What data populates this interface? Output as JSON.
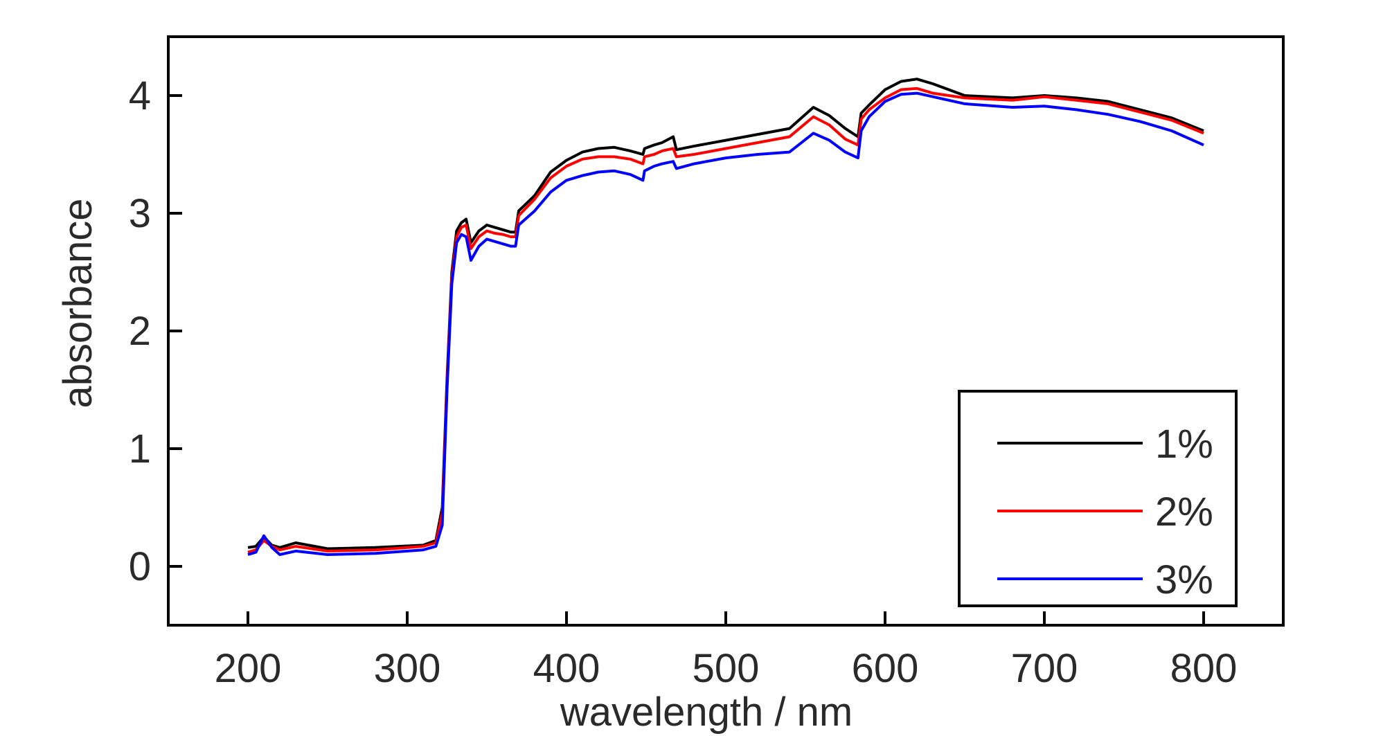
{
  "chart_data": {
    "type": "line",
    "title": "",
    "xlabel": "wavelength / nm",
    "ylabel": "absorbance",
    "xlim": [
      150,
      850
    ],
    "ylim": [
      -0.5,
      4.5
    ],
    "xticks": [
      200,
      300,
      400,
      500,
      600,
      700,
      800
    ],
    "yticks": [
      0,
      1,
      2,
      3,
      4
    ],
    "grid": false,
    "legend_position": "bottom-right",
    "x": [
      200,
      205,
      210,
      215,
      220,
      230,
      250,
      280,
      310,
      318,
      322,
      325,
      328,
      331,
      334,
      337,
      340,
      345,
      350,
      355,
      360,
      365,
      368,
      370,
      380,
      390,
      400,
      410,
      420,
      430,
      440,
      448,
      449,
      455,
      460,
      467,
      469,
      480,
      500,
      520,
      540,
      555,
      565,
      575,
      583,
      585,
      590,
      600,
      610,
      620,
      630,
      650,
      680,
      700,
      720,
      740,
      760,
      780,
      800
    ],
    "series": [
      {
        "name": "1%",
        "color": "#000000",
        "values": [
          0.16,
          0.17,
          0.25,
          0.18,
          0.16,
          0.2,
          0.15,
          0.16,
          0.18,
          0.22,
          0.5,
          1.6,
          2.5,
          2.85,
          2.92,
          2.95,
          2.75,
          2.85,
          2.9,
          2.88,
          2.86,
          2.84,
          2.84,
          3.02,
          3.15,
          3.35,
          3.45,
          3.52,
          3.55,
          3.56,
          3.53,
          3.5,
          3.55,
          3.58,
          3.6,
          3.65,
          3.54,
          3.57,
          3.62,
          3.67,
          3.72,
          3.9,
          3.83,
          3.72,
          3.65,
          3.85,
          3.92,
          4.05,
          4.12,
          4.14,
          4.1,
          4.0,
          3.98,
          4.0,
          3.98,
          3.95,
          3.88,
          3.81,
          3.7
        ]
      },
      {
        "name": "2%",
        "color": "#ff0000",
        "values": [
          0.12,
          0.14,
          0.22,
          0.17,
          0.14,
          0.17,
          0.13,
          0.14,
          0.17,
          0.2,
          0.45,
          1.55,
          2.45,
          2.8,
          2.88,
          2.9,
          2.7,
          2.8,
          2.85,
          2.83,
          2.82,
          2.8,
          2.8,
          2.98,
          3.12,
          3.3,
          3.4,
          3.46,
          3.48,
          3.48,
          3.46,
          3.42,
          3.48,
          3.5,
          3.53,
          3.55,
          3.48,
          3.5,
          3.55,
          3.6,
          3.65,
          3.82,
          3.75,
          3.63,
          3.58,
          3.8,
          3.88,
          3.98,
          4.05,
          4.06,
          4.02,
          3.98,
          3.96,
          3.99,
          3.96,
          3.93,
          3.86,
          3.79,
          3.68
        ]
      },
      {
        "name": "3%",
        "color": "#0000ff",
        "values": [
          0.1,
          0.12,
          0.26,
          0.16,
          0.1,
          0.13,
          0.1,
          0.11,
          0.14,
          0.17,
          0.35,
          1.5,
          2.4,
          2.75,
          2.82,
          2.8,
          2.6,
          2.72,
          2.78,
          2.76,
          2.74,
          2.72,
          2.72,
          2.9,
          3.02,
          3.18,
          3.28,
          3.32,
          3.35,
          3.36,
          3.33,
          3.28,
          3.36,
          3.4,
          3.42,
          3.44,
          3.38,
          3.42,
          3.47,
          3.5,
          3.52,
          3.68,
          3.62,
          3.52,
          3.47,
          3.7,
          3.82,
          3.95,
          4.01,
          4.02,
          3.99,
          3.93,
          3.9,
          3.91,
          3.88,
          3.84,
          3.78,
          3.7,
          3.58
        ]
      }
    ]
  }
}
